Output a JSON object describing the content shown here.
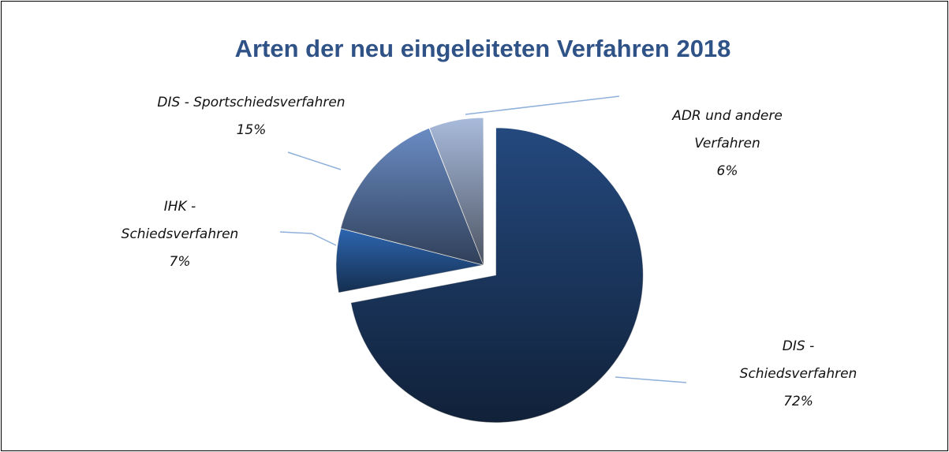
{
  "chart_data": {
    "type": "pie",
    "title": "Arten der neu eingeleiteten Verfahren 2018",
    "categories": [
      "DIS - Schiedsverfahren",
      "IHK - Schiedsverfahren",
      "DIS - Sportschiedsverfahren",
      "ADR und andere Verfahren"
    ],
    "values": [
      72,
      7,
      15,
      6
    ],
    "value_labels": [
      "72%",
      "7%",
      "15%",
      "6%"
    ],
    "colors": [
      "#24497e",
      "#2d66b0",
      "#6a8cc4",
      "#a9bbdc"
    ],
    "exploded": [
      true,
      false,
      false,
      false
    ]
  }
}
